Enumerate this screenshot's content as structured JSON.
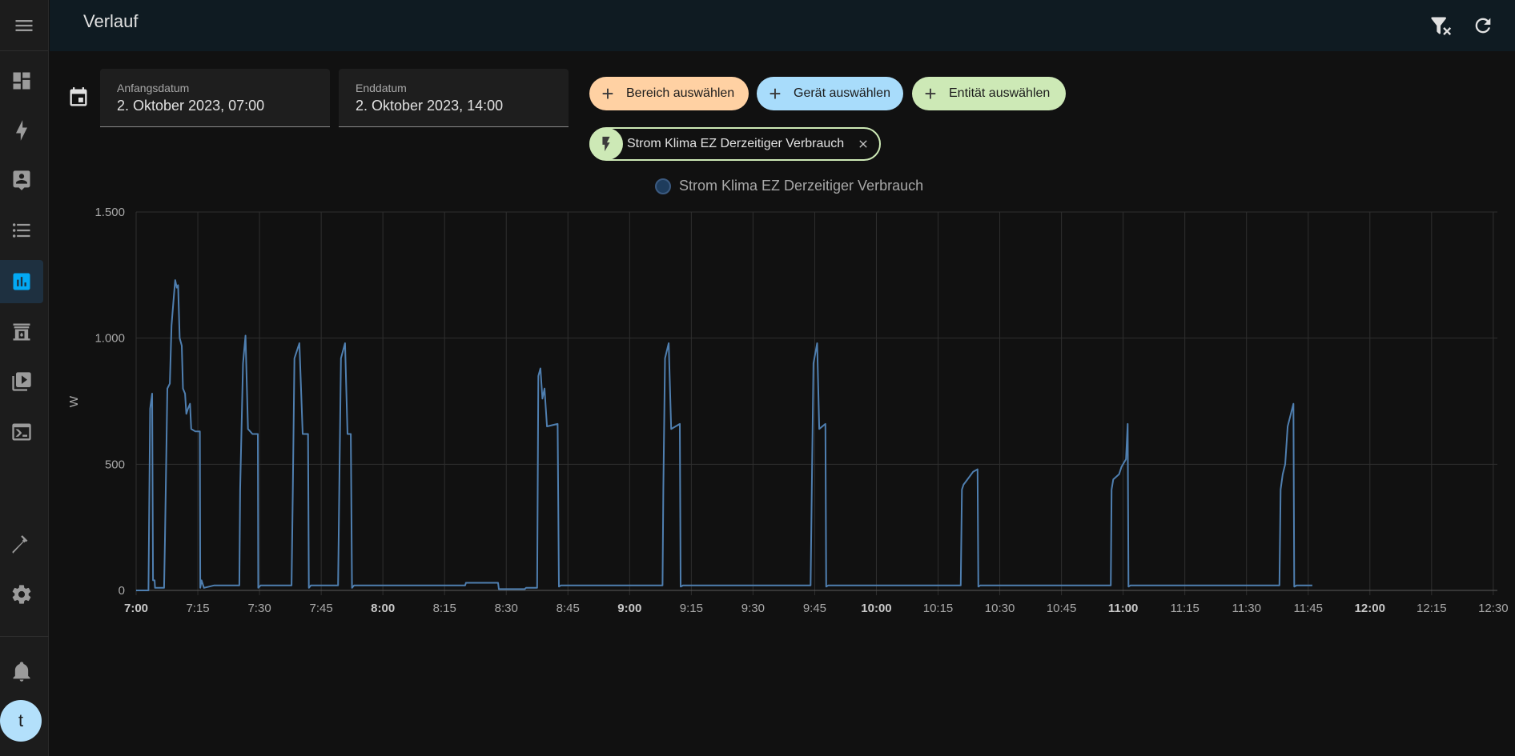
{
  "header": {
    "title": "Verlauf",
    "filter_icon": "filter-remove-icon",
    "refresh_icon": "refresh-icon"
  },
  "sidebar": {
    "items": [
      {
        "icon": "dashboard-icon"
      },
      {
        "icon": "energy-icon"
      },
      {
        "icon": "map-icon"
      },
      {
        "icon": "logbook-icon"
      },
      {
        "icon": "history-icon",
        "active": true
      },
      {
        "icon": "hacs-icon"
      },
      {
        "icon": "media-icon"
      },
      {
        "icon": "terminal-icon"
      },
      {
        "icon": "developer-tools-icon"
      },
      {
        "icon": "settings-icon"
      },
      {
        "icon": "notifications-icon"
      }
    ],
    "user_initial": "t"
  },
  "dates": {
    "start": {
      "label": "Anfangsdatum",
      "value": "2. Oktober 2023, 07:00"
    },
    "end": {
      "label": "Enddatum",
      "value": "2. Oktober 2023, 14:00"
    }
  },
  "chips": {
    "area": {
      "label": "Bereich auswählen",
      "color": "#ffd1a3"
    },
    "device": {
      "label": "Gerät auswählen",
      "color": "#a8dcfb"
    },
    "entity": {
      "label": "Entität auswählen",
      "color": "#cde9b6"
    }
  },
  "selected_entity": {
    "label": "Strom Klima EZ Derzeitiger Verbrauch",
    "icon": "flash-icon"
  },
  "chart_data": {
    "type": "line",
    "series": [
      {
        "name": "Strom Klima EZ Derzeitiger Verbrauch",
        "color": "#4f7fb0",
        "points": [
          [
            0,
            0
          ],
          [
            3,
            0
          ],
          [
            3.4,
            720
          ],
          [
            3.9,
            780
          ],
          [
            4.1,
            40
          ],
          [
            4.5,
            40
          ],
          [
            4.6,
            10
          ],
          [
            6.8,
            10
          ],
          [
            7,
            200
          ],
          [
            7.6,
            800
          ],
          [
            8.2,
            820
          ],
          [
            8.6,
            1050
          ],
          [
            9.1,
            1150
          ],
          [
            9.5,
            1230
          ],
          [
            9.9,
            1200
          ],
          [
            10.2,
            1210
          ],
          [
            10.6,
            1000
          ],
          [
            11.1,
            970
          ],
          [
            11.4,
            800
          ],
          [
            11.9,
            780
          ],
          [
            12.2,
            700
          ],
          [
            12.6,
            720
          ],
          [
            13.1,
            740
          ],
          [
            13.4,
            640
          ],
          [
            14.4,
            630
          ],
          [
            15.5,
            630
          ],
          [
            15.6,
            10
          ],
          [
            15.9,
            40
          ],
          [
            16.5,
            10
          ],
          [
            19,
            20
          ],
          [
            25.1,
            20
          ],
          [
            25.3,
            400
          ],
          [
            26,
            900
          ],
          [
            26.6,
            1010
          ],
          [
            27.2,
            640
          ],
          [
            28.3,
            620
          ],
          [
            29.6,
            620
          ],
          [
            29.7,
            10
          ],
          [
            30.3,
            20
          ],
          [
            37.8,
            20
          ],
          [
            38.1,
            400
          ],
          [
            38.5,
            920
          ],
          [
            39.7,
            980
          ],
          [
            40.5,
            620
          ],
          [
            41.8,
            620
          ],
          [
            42,
            10
          ],
          [
            42.5,
            20
          ],
          [
            49.1,
            20
          ],
          [
            49.4,
            400
          ],
          [
            49.8,
            920
          ],
          [
            50.8,
            980
          ],
          [
            51.4,
            620
          ],
          [
            52.2,
            620
          ],
          [
            52.5,
            10
          ],
          [
            53,
            20
          ],
          [
            80,
            20
          ],
          [
            80.2,
            30
          ],
          [
            88,
            30
          ],
          [
            88.2,
            5
          ],
          [
            94.5,
            5
          ],
          [
            94.8,
            10
          ],
          [
            97.5,
            10
          ],
          [
            97.8,
            850
          ],
          [
            98.3,
            880
          ],
          [
            98.8,
            760
          ],
          [
            99.3,
            800
          ],
          [
            99.9,
            650
          ],
          [
            102.5,
            660
          ],
          [
            102.8,
            15
          ],
          [
            103.3,
            20
          ],
          [
            128,
            20
          ],
          [
            128.2,
            400
          ],
          [
            128.6,
            920
          ],
          [
            129.5,
            980
          ],
          [
            130.1,
            640
          ],
          [
            132.2,
            660
          ],
          [
            132.4,
            15
          ],
          [
            133,
            20
          ],
          [
            164,
            20
          ],
          [
            164.3,
            400
          ],
          [
            164.7,
            900
          ],
          [
            165.6,
            980
          ],
          [
            166.1,
            640
          ],
          [
            167.6,
            660
          ],
          [
            167.8,
            15
          ],
          [
            168.3,
            20
          ],
          [
            200.5,
            20
          ],
          [
            200.8,
            400
          ],
          [
            201.2,
            420
          ],
          [
            201.7,
            430
          ],
          [
            203.5,
            470
          ],
          [
            204.6,
            480
          ],
          [
            204.8,
            15
          ],
          [
            205.3,
            20
          ],
          [
            237,
            20
          ],
          [
            237.2,
            400
          ],
          [
            237.6,
            440
          ],
          [
            239,
            460
          ],
          [
            239.6,
            490
          ],
          [
            240.7,
            520
          ],
          [
            241.1,
            660
          ],
          [
            241.3,
            15
          ],
          [
            241.8,
            20
          ],
          [
            278,
            20
          ],
          [
            278.3,
            400
          ],
          [
            278.8,
            460
          ],
          [
            279.4,
            500
          ],
          [
            280,
            650
          ],
          [
            281.4,
            740
          ],
          [
            281.6,
            15
          ],
          [
            282.2,
            20
          ],
          [
            286,
            20
          ]
        ]
      }
    ],
    "x_axis": {
      "ticks": [
        {
          "m": 0,
          "label": "7:00",
          "bold": true
        },
        {
          "m": 15,
          "label": "7:15"
        },
        {
          "m": 30,
          "label": "7:30"
        },
        {
          "m": 45,
          "label": "7:45"
        },
        {
          "m": 60,
          "label": "8:00",
          "bold": true
        },
        {
          "m": 75,
          "label": "8:15"
        },
        {
          "m": 90,
          "label": "8:30"
        },
        {
          "m": 105,
          "label": "8:45"
        },
        {
          "m": 120,
          "label": "9:00",
          "bold": true
        },
        {
          "m": 135,
          "label": "9:15"
        },
        {
          "m": 150,
          "label": "9:30"
        },
        {
          "m": 165,
          "label": "9:45"
        },
        {
          "m": 180,
          "label": "10:00",
          "bold": true
        },
        {
          "m": 195,
          "label": "10:15"
        },
        {
          "m": 210,
          "label": "10:30"
        },
        {
          "m": 225,
          "label": "10:45"
        },
        {
          "m": 240,
          "label": "11:00",
          "bold": true
        },
        {
          "m": 255,
          "label": "11:15"
        },
        {
          "m": 270,
          "label": "11:30"
        },
        {
          "m": 285,
          "label": "11:45"
        },
        {
          "m": 300,
          "label": "12:00",
          "bold": true
        },
        {
          "m": 315,
          "label": "12:15"
        },
        {
          "m": 330,
          "label": "12:30"
        }
      ],
      "range": [
        0,
        331
      ]
    },
    "y_axis": {
      "label": "W",
      "range": [
        0,
        1500
      ],
      "ticks": [
        {
          "v": 0,
          "label": "0"
        },
        {
          "v": 500,
          "label": "500"
        },
        {
          "v": 1000,
          "label": "1.000"
        },
        {
          "v": 1500,
          "label": "1.500"
        }
      ]
    },
    "grid": true,
    "legend": "top-center"
  }
}
